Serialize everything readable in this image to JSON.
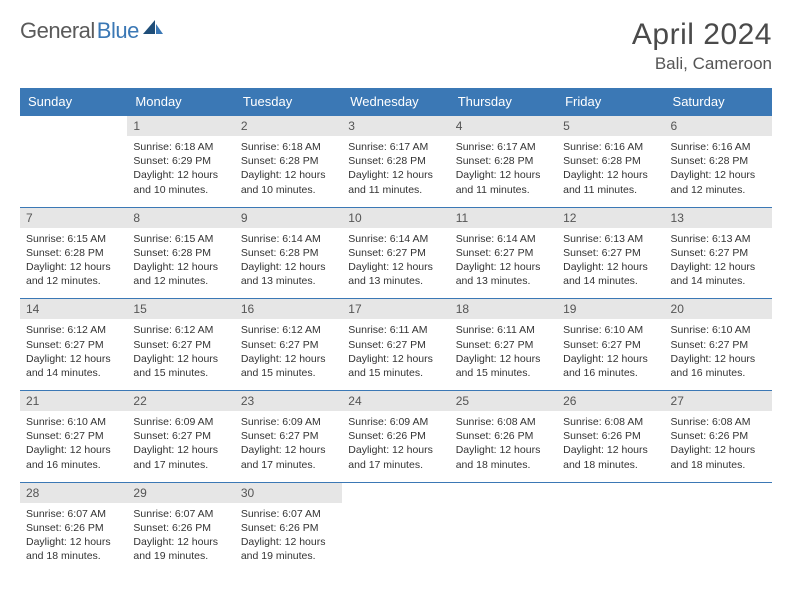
{
  "logo": {
    "text1": "General",
    "text2": "Blue"
  },
  "title": "April 2024",
  "location": "Bali, Cameroon",
  "colors": {
    "header_bg": "#3b78b5",
    "header_text": "#ffffff",
    "daynum_bg": "#e6e6e6",
    "border": "#3b78b5",
    "logo_gray": "#5a5a5a",
    "logo_blue": "#3b78b5",
    "body_text": "#333333"
  },
  "day_headers": [
    "Sunday",
    "Monday",
    "Tuesday",
    "Wednesday",
    "Thursday",
    "Friday",
    "Saturday"
  ],
  "weeks": [
    [
      {
        "n": "",
        "sr": "",
        "ss": "",
        "dl": ""
      },
      {
        "n": "1",
        "sr": "Sunrise: 6:18 AM",
        "ss": "Sunset: 6:29 PM",
        "dl": "Daylight: 12 hours and 10 minutes."
      },
      {
        "n": "2",
        "sr": "Sunrise: 6:18 AM",
        "ss": "Sunset: 6:28 PM",
        "dl": "Daylight: 12 hours and 10 minutes."
      },
      {
        "n": "3",
        "sr": "Sunrise: 6:17 AM",
        "ss": "Sunset: 6:28 PM",
        "dl": "Daylight: 12 hours and 11 minutes."
      },
      {
        "n": "4",
        "sr": "Sunrise: 6:17 AM",
        "ss": "Sunset: 6:28 PM",
        "dl": "Daylight: 12 hours and 11 minutes."
      },
      {
        "n": "5",
        "sr": "Sunrise: 6:16 AM",
        "ss": "Sunset: 6:28 PM",
        "dl": "Daylight: 12 hours and 11 minutes."
      },
      {
        "n": "6",
        "sr": "Sunrise: 6:16 AM",
        "ss": "Sunset: 6:28 PM",
        "dl": "Daylight: 12 hours and 12 minutes."
      }
    ],
    [
      {
        "n": "7",
        "sr": "Sunrise: 6:15 AM",
        "ss": "Sunset: 6:28 PM",
        "dl": "Daylight: 12 hours and 12 minutes."
      },
      {
        "n": "8",
        "sr": "Sunrise: 6:15 AM",
        "ss": "Sunset: 6:28 PM",
        "dl": "Daylight: 12 hours and 12 minutes."
      },
      {
        "n": "9",
        "sr": "Sunrise: 6:14 AM",
        "ss": "Sunset: 6:28 PM",
        "dl": "Daylight: 12 hours and 13 minutes."
      },
      {
        "n": "10",
        "sr": "Sunrise: 6:14 AM",
        "ss": "Sunset: 6:27 PM",
        "dl": "Daylight: 12 hours and 13 minutes."
      },
      {
        "n": "11",
        "sr": "Sunrise: 6:14 AM",
        "ss": "Sunset: 6:27 PM",
        "dl": "Daylight: 12 hours and 13 minutes."
      },
      {
        "n": "12",
        "sr": "Sunrise: 6:13 AM",
        "ss": "Sunset: 6:27 PM",
        "dl": "Daylight: 12 hours and 14 minutes."
      },
      {
        "n": "13",
        "sr": "Sunrise: 6:13 AM",
        "ss": "Sunset: 6:27 PM",
        "dl": "Daylight: 12 hours and 14 minutes."
      }
    ],
    [
      {
        "n": "14",
        "sr": "Sunrise: 6:12 AM",
        "ss": "Sunset: 6:27 PM",
        "dl": "Daylight: 12 hours and 14 minutes."
      },
      {
        "n": "15",
        "sr": "Sunrise: 6:12 AM",
        "ss": "Sunset: 6:27 PM",
        "dl": "Daylight: 12 hours and 15 minutes."
      },
      {
        "n": "16",
        "sr": "Sunrise: 6:12 AM",
        "ss": "Sunset: 6:27 PM",
        "dl": "Daylight: 12 hours and 15 minutes."
      },
      {
        "n": "17",
        "sr": "Sunrise: 6:11 AM",
        "ss": "Sunset: 6:27 PM",
        "dl": "Daylight: 12 hours and 15 minutes."
      },
      {
        "n": "18",
        "sr": "Sunrise: 6:11 AM",
        "ss": "Sunset: 6:27 PM",
        "dl": "Daylight: 12 hours and 15 minutes."
      },
      {
        "n": "19",
        "sr": "Sunrise: 6:10 AM",
        "ss": "Sunset: 6:27 PM",
        "dl": "Daylight: 12 hours and 16 minutes."
      },
      {
        "n": "20",
        "sr": "Sunrise: 6:10 AM",
        "ss": "Sunset: 6:27 PM",
        "dl": "Daylight: 12 hours and 16 minutes."
      }
    ],
    [
      {
        "n": "21",
        "sr": "Sunrise: 6:10 AM",
        "ss": "Sunset: 6:27 PM",
        "dl": "Daylight: 12 hours and 16 minutes."
      },
      {
        "n": "22",
        "sr": "Sunrise: 6:09 AM",
        "ss": "Sunset: 6:27 PM",
        "dl": "Daylight: 12 hours and 17 minutes."
      },
      {
        "n": "23",
        "sr": "Sunrise: 6:09 AM",
        "ss": "Sunset: 6:27 PM",
        "dl": "Daylight: 12 hours and 17 minutes."
      },
      {
        "n": "24",
        "sr": "Sunrise: 6:09 AM",
        "ss": "Sunset: 6:26 PM",
        "dl": "Daylight: 12 hours and 17 minutes."
      },
      {
        "n": "25",
        "sr": "Sunrise: 6:08 AM",
        "ss": "Sunset: 6:26 PM",
        "dl": "Daylight: 12 hours and 18 minutes."
      },
      {
        "n": "26",
        "sr": "Sunrise: 6:08 AM",
        "ss": "Sunset: 6:26 PM",
        "dl": "Daylight: 12 hours and 18 minutes."
      },
      {
        "n": "27",
        "sr": "Sunrise: 6:08 AM",
        "ss": "Sunset: 6:26 PM",
        "dl": "Daylight: 12 hours and 18 minutes."
      }
    ],
    [
      {
        "n": "28",
        "sr": "Sunrise: 6:07 AM",
        "ss": "Sunset: 6:26 PM",
        "dl": "Daylight: 12 hours and 18 minutes."
      },
      {
        "n": "29",
        "sr": "Sunrise: 6:07 AM",
        "ss": "Sunset: 6:26 PM",
        "dl": "Daylight: 12 hours and 19 minutes."
      },
      {
        "n": "30",
        "sr": "Sunrise: 6:07 AM",
        "ss": "Sunset: 6:26 PM",
        "dl": "Daylight: 12 hours and 19 minutes."
      },
      {
        "n": "",
        "sr": "",
        "ss": "",
        "dl": ""
      },
      {
        "n": "",
        "sr": "",
        "ss": "",
        "dl": ""
      },
      {
        "n": "",
        "sr": "",
        "ss": "",
        "dl": ""
      },
      {
        "n": "",
        "sr": "",
        "ss": "",
        "dl": ""
      }
    ]
  ]
}
